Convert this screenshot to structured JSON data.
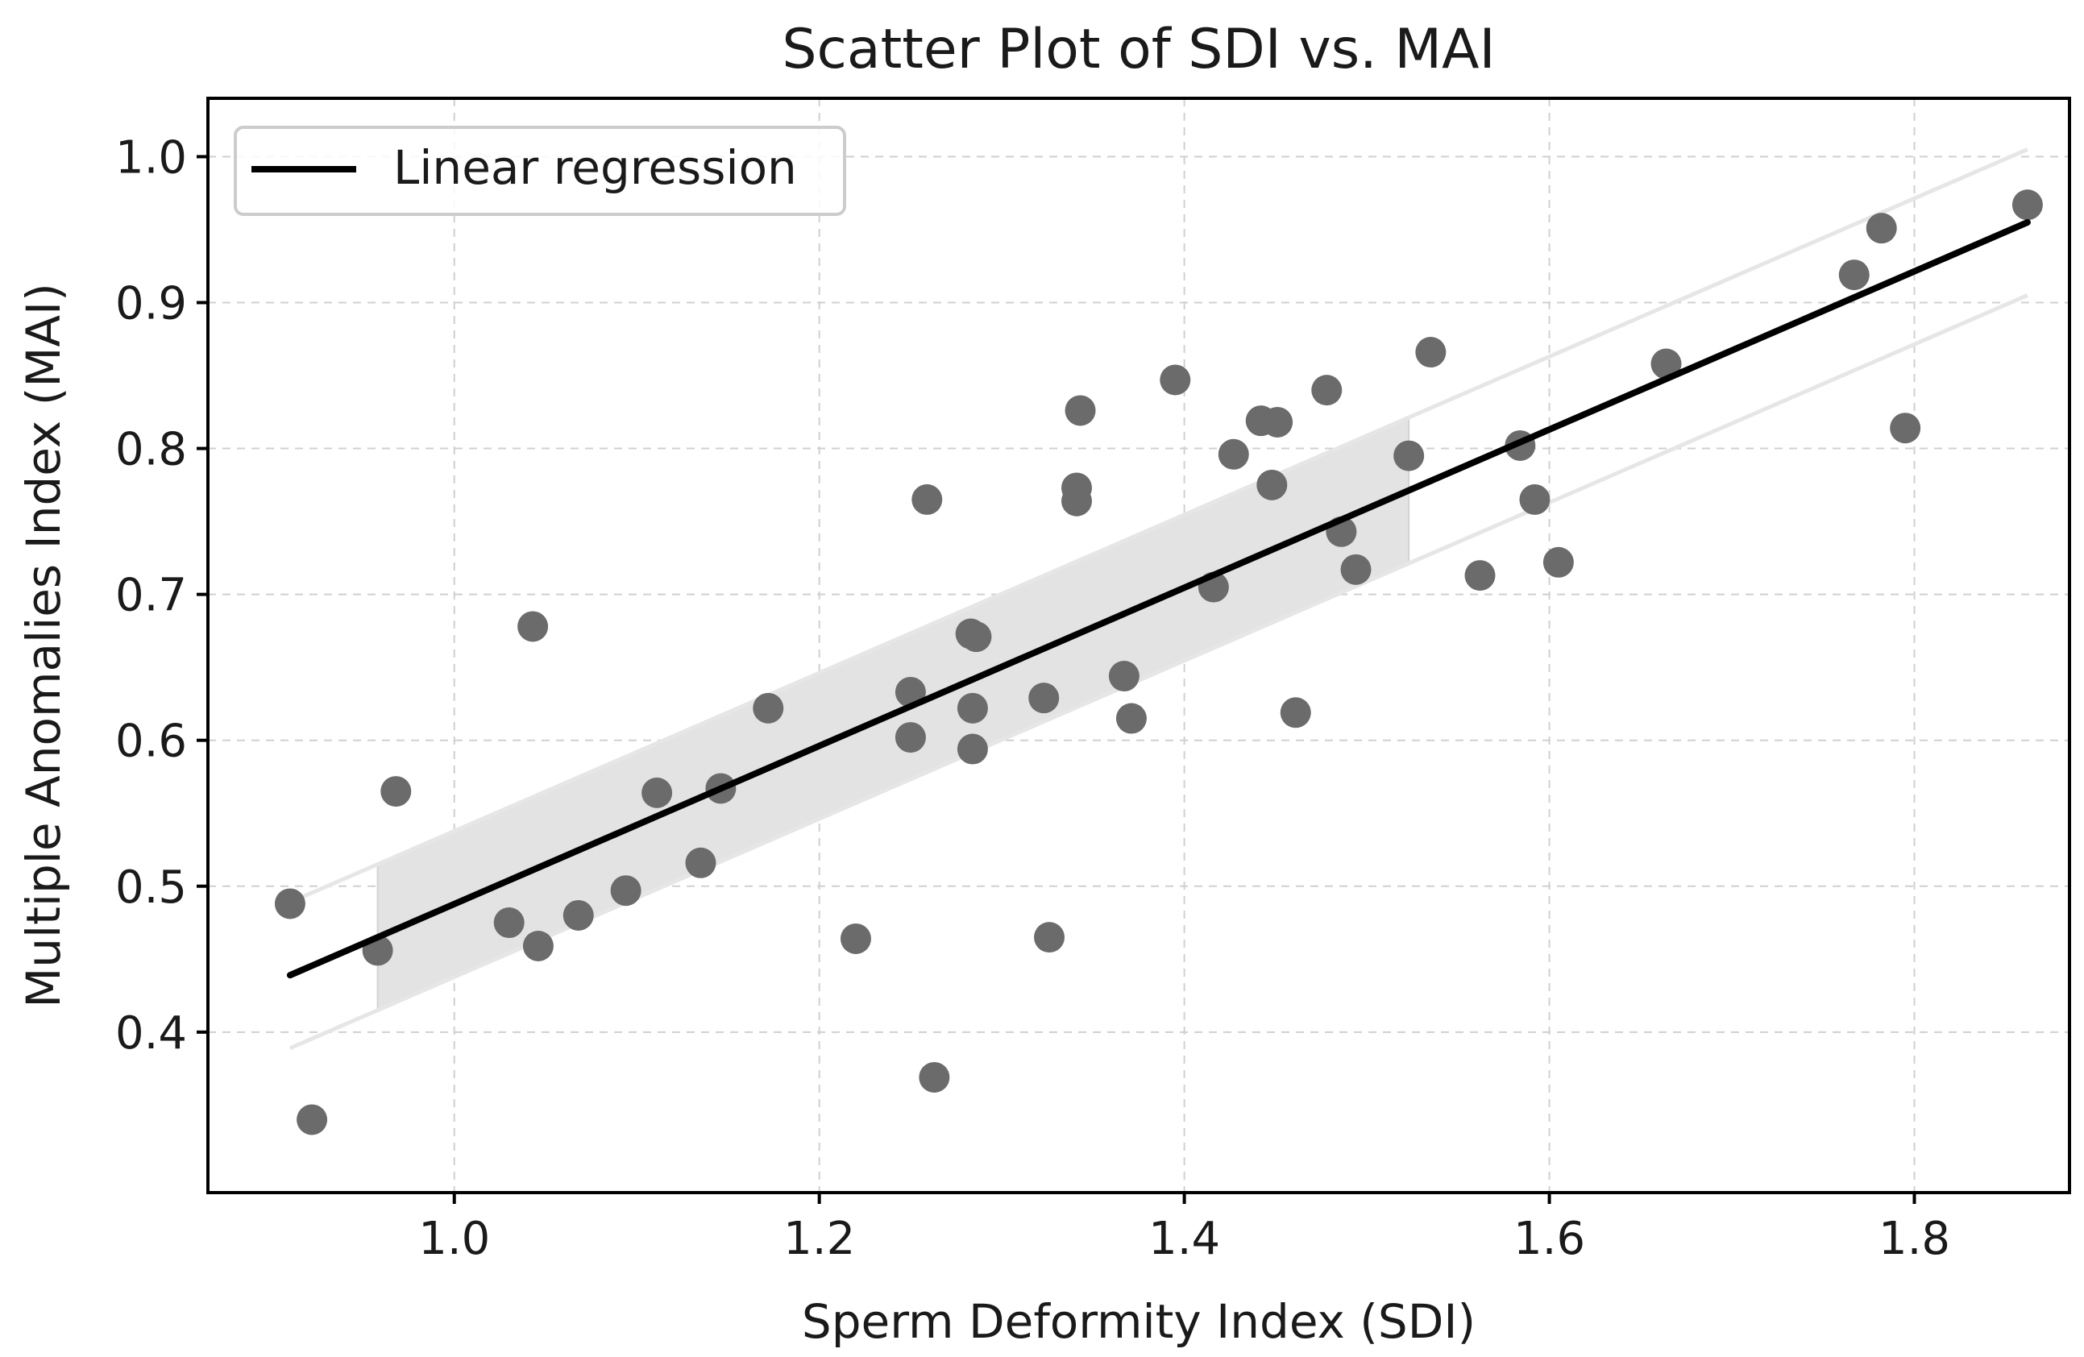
{
  "chart_data": {
    "type": "scatter",
    "title": "Scatter Plot of SDI vs. MAI",
    "xlabel": "Sperm Deformity Index (SDI)",
    "ylabel": "Multiple Anomalies Index (MAI)",
    "xlim": [
      0.865,
      1.885
    ],
    "ylim": [
      0.29,
      1.04
    ],
    "xticks": [
      1.0,
      1.2,
      1.4,
      1.6,
      1.8
    ],
    "xtick_labels": [
      "1.0",
      "1.2",
      "1.4",
      "1.6",
      "1.8"
    ],
    "yticks": [
      0.4,
      0.5,
      0.6,
      0.7,
      0.8,
      0.9,
      1.0
    ],
    "ytick_labels": [
      "0.4",
      "0.5",
      "0.6",
      "0.7",
      "0.8",
      "0.9",
      "1.0"
    ],
    "grid": true,
    "legend": {
      "placement": "top-left",
      "entries": [
        "Linear regression"
      ]
    },
    "points": [
      {
        "x": 0.91,
        "y": 0.488
      },
      {
        "x": 0.922,
        "y": 0.34
      },
      {
        "x": 0.958,
        "y": 0.456
      },
      {
        "x": 0.968,
        "y": 0.565
      },
      {
        "x": 1.03,
        "y": 0.475
      },
      {
        "x": 1.043,
        "y": 0.678
      },
      {
        "x": 1.046,
        "y": 0.459
      },
      {
        "x": 1.068,
        "y": 0.48
      },
      {
        "x": 1.094,
        "y": 0.497
      },
      {
        "x": 1.111,
        "y": 0.564
      },
      {
        "x": 1.135,
        "y": 0.516
      },
      {
        "x": 1.146,
        "y": 0.567
      },
      {
        "x": 1.172,
        "y": 0.622
      },
      {
        "x": 1.22,
        "y": 0.464
      },
      {
        "x": 1.25,
        "y": 0.633
      },
      {
        "x": 1.25,
        "y": 0.602
      },
      {
        "x": 1.259,
        "y": 0.765
      },
      {
        "x": 1.263,
        "y": 0.369
      },
      {
        "x": 1.283,
        "y": 0.673
      },
      {
        "x": 1.286,
        "y": 0.671
      },
      {
        "x": 1.284,
        "y": 0.622
      },
      {
        "x": 1.284,
        "y": 0.594
      },
      {
        "x": 1.323,
        "y": 0.629
      },
      {
        "x": 1.326,
        "y": 0.465
      },
      {
        "x": 1.341,
        "y": 0.773
      },
      {
        "x": 1.341,
        "y": 0.764
      },
      {
        "x": 1.343,
        "y": 0.826
      },
      {
        "x": 1.367,
        "y": 0.644
      },
      {
        "x": 1.371,
        "y": 0.615
      },
      {
        "x": 1.395,
        "y": 0.847
      },
      {
        "x": 1.416,
        "y": 0.705
      },
      {
        "x": 1.427,
        "y": 0.796
      },
      {
        "x": 1.442,
        "y": 0.819
      },
      {
        "x": 1.451,
        "y": 0.818
      },
      {
        "x": 1.448,
        "y": 0.775
      },
      {
        "x": 1.461,
        "y": 0.619
      },
      {
        "x": 1.478,
        "y": 0.84
      },
      {
        "x": 1.486,
        "y": 0.743
      },
      {
        "x": 1.494,
        "y": 0.717
      },
      {
        "x": 1.523,
        "y": 0.795
      },
      {
        "x": 1.535,
        "y": 0.866
      },
      {
        "x": 1.562,
        "y": 0.713
      },
      {
        "x": 1.584,
        "y": 0.802
      },
      {
        "x": 1.592,
        "y": 0.765
      },
      {
        "x": 1.605,
        "y": 0.722
      },
      {
        "x": 1.664,
        "y": 0.858
      },
      {
        "x": 1.767,
        "y": 0.919
      },
      {
        "x": 1.782,
        "y": 0.951
      },
      {
        "x": 1.795,
        "y": 0.814
      },
      {
        "x": 1.862,
        "y": 0.967
      }
    ],
    "regression": {
      "name": "Linear regression",
      "x": [
        0.91,
        1.862
      ],
      "y": [
        0.439,
        0.955
      ]
    },
    "outer_band": {
      "x": [
        0.91,
        1.862
      ],
      "lower": [
        0.389,
        0.905
      ],
      "upper": [
        0.489,
        1.005
      ]
    },
    "inner_band": {
      "x": [
        0.958,
        1.523
      ],
      "lower": [
        0.415,
        0.721
      ],
      "upper": [
        0.515,
        0.821
      ]
    },
    "colors": {
      "points": "#6b6b6b",
      "regression": "#000000",
      "inner_band_fill": "#e3e3e3",
      "band_lines": "#e6e6e6",
      "grid": "#d0d0d0",
      "axes": "#000000"
    }
  }
}
